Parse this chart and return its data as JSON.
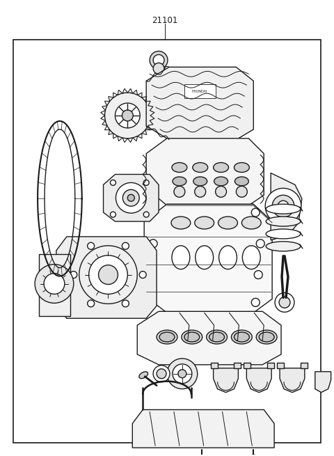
{
  "title": "21101",
  "background_color": "#ffffff",
  "border_color": "#1a1a1a",
  "line_color": "#1a1a1a",
  "fig_width": 4.8,
  "fig_height": 6.55,
  "dpi": 100,
  "title_fontsize": 8.5,
  "title_fontweight": "normal",
  "title_family": "sans-serif"
}
